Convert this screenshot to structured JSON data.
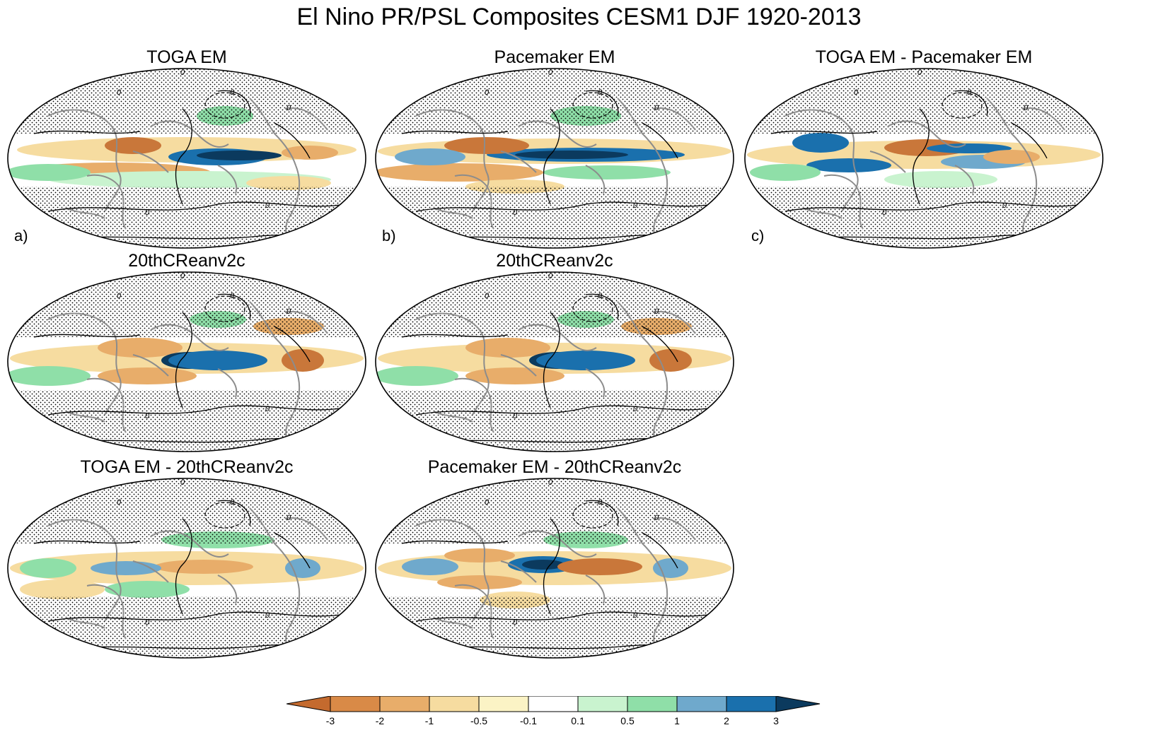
{
  "title": "El Nino PR/PSL Composites CESM1 DJF 1920-2013",
  "panels": [
    {
      "id": "toga",
      "title": "TOGA EM",
      "label": "a)"
    },
    {
      "id": "pacemaker",
      "title": "Pacemaker EM",
      "label": "b)"
    },
    {
      "id": "toga_minus_pacemaker",
      "title": "TOGA EM - Pacemaker EM",
      "label": "c)"
    },
    {
      "id": "reanalysis_1",
      "title": "20thCReanv2c",
      "label": ""
    },
    {
      "id": "reanalysis_2",
      "title": "20thCReanv2c",
      "label": ""
    },
    {
      "id": "toga_minus_reanalysis",
      "title": "TOGA EM - 20thCReanv2c",
      "label": ""
    },
    {
      "id": "pacemaker_minus_reanalysis",
      "title": "Pacemaker EM - 20thCReanv2c",
      "label": ""
    }
  ],
  "contour_label": "0",
  "colorbar": {
    "tick_labels": [
      "-3",
      "-2",
      "-1",
      "-0.5",
      "-0.1",
      "0.1",
      "0.5",
      "1",
      "2",
      "3"
    ],
    "colors": [
      "#c46a2e",
      "#d98a47",
      "#e8ad6a",
      "#f6dca0",
      "#fbf3c5",
      "#ffffff",
      "#c9f3cf",
      "#8fdfa8",
      "#6fa9cc",
      "#1a70ad",
      "#0b3a5e"
    ]
  },
  "colors": {
    "dry_strong": "#c9773a",
    "dry_mid": "#e8ad6a",
    "dry_weak": "#f6dca0",
    "wet_weak": "#c9f3cf",
    "wet_mid": "#8fdfa8",
    "wet_blue": "#6fa9cc",
    "wet_strong": "#1a70ad",
    "wet_max": "#0b3a5e",
    "coast": "#8c8c8c"
  }
}
